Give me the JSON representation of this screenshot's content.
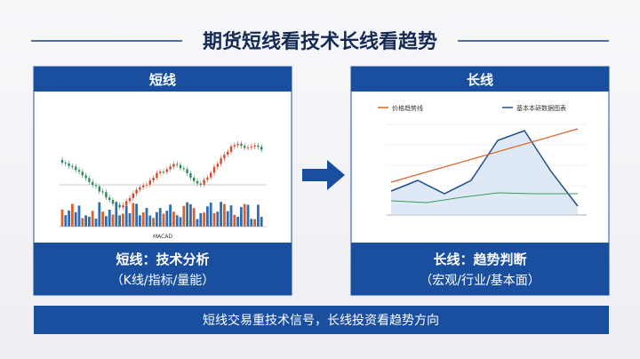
{
  "header": {
    "title": "期货短线看技术长线看趋势"
  },
  "left_panel": {
    "label": "短线",
    "chart_caption": "MACAD",
    "heading": "短线：技术分析",
    "subheading": "（K线/指标/量能）"
  },
  "right_panel": {
    "label": "长线",
    "legend": [
      "价格趋势线",
      "基本本研数据图表"
    ],
    "heading": "长线：趋势判断",
    "subheading": "（宏观/行业/基本面）"
  },
  "footer": {
    "text": "短线交易重技术信号，长线投资看趋势方向"
  }
}
